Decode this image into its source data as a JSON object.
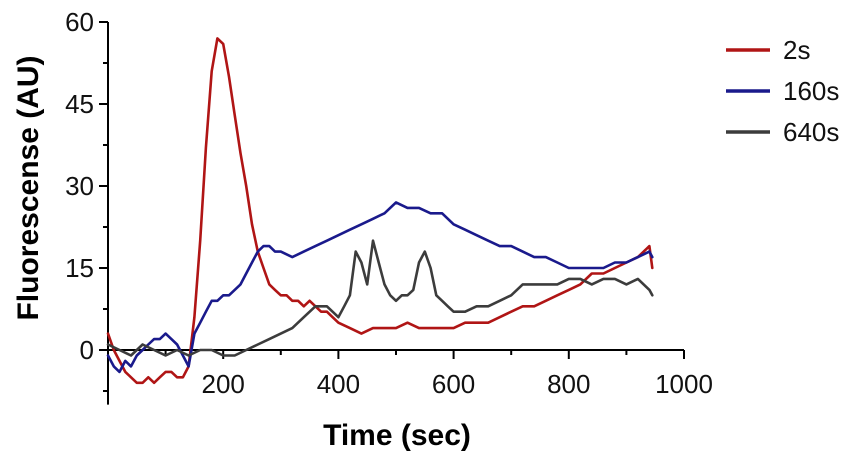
{
  "chart_data": {
    "type": "line",
    "title": "",
    "xlabel": "Time (sec)",
    "ylabel": "Fluorescense (AU)",
    "xlim": [
      0,
      1000
    ],
    "ylim": [
      -10,
      60
    ],
    "xticks": [
      200,
      400,
      600,
      800,
      1000
    ],
    "xtick_labels": [
      "200",
      "400",
      "600",
      "800",
      "1000"
    ],
    "yticks": [
      0,
      15,
      30,
      45,
      60
    ],
    "ytick_labels": [
      "0",
      "15",
      "30",
      "45",
      60
    ],
    "grid": false,
    "legend_position": "top-right",
    "series": [
      {
        "name": "2s",
        "color": "#b01515",
        "x": [
          0,
          10,
          20,
          30,
          40,
          50,
          60,
          70,
          80,
          90,
          100,
          110,
          120,
          130,
          140,
          150,
          160,
          170,
          180,
          190,
          200,
          210,
          220,
          230,
          240,
          250,
          260,
          270,
          280,
          290,
          300,
          310,
          320,
          330,
          340,
          350,
          360,
          370,
          380,
          390,
          400,
          420,
          440,
          460,
          480,
          500,
          520,
          540,
          560,
          580,
          600,
          620,
          640,
          660,
          680,
          700,
          720,
          740,
          760,
          780,
          800,
          820,
          840,
          860,
          880,
          900,
          920,
          930,
          940,
          945
        ],
        "y": [
          3,
          0,
          -2,
          -4,
          -5,
          -6,
          -6,
          -5,
          -6,
          -5,
          -4,
          -4,
          -5,
          -5,
          -3,
          6,
          20,
          37,
          51,
          57,
          56,
          50,
          43,
          36,
          30,
          23,
          18,
          15,
          12,
          11,
          10,
          10,
          9,
          9,
          8,
          9,
          8,
          7,
          7,
          6,
          5,
          4,
          3,
          4,
          4,
          4,
          5,
          4,
          4,
          4,
          4,
          5,
          5,
          5,
          6,
          7,
          8,
          8,
          9,
          10,
          11,
          12,
          14,
          14,
          15,
          16,
          17,
          18,
          19,
          15
        ]
      },
      {
        "name": "160s",
        "color": "#1a1a8c",
        "x": [
          0,
          10,
          20,
          30,
          40,
          50,
          60,
          70,
          80,
          90,
          100,
          110,
          120,
          130,
          140,
          150,
          160,
          170,
          180,
          190,
          200,
          210,
          220,
          230,
          240,
          250,
          260,
          270,
          280,
          290,
          300,
          320,
          340,
          360,
          380,
          400,
          420,
          440,
          460,
          480,
          500,
          520,
          540,
          560,
          580,
          600,
          620,
          640,
          660,
          680,
          700,
          720,
          740,
          760,
          780,
          800,
          820,
          840,
          860,
          880,
          900,
          920,
          940,
          945
        ],
        "y": [
          -1,
          -3,
          -4,
          -2,
          -3,
          -1,
          0,
          1,
          2,
          2,
          3,
          2,
          1,
          -1,
          -3,
          3,
          5,
          7,
          9,
          9,
          10,
          10,
          11,
          12,
          14,
          16,
          18,
          19,
          19,
          18,
          18,
          17,
          18,
          19,
          20,
          21,
          22,
          23,
          24,
          25,
          27,
          26,
          26,
          25,
          25,
          23,
          22,
          21,
          20,
          19,
          19,
          18,
          17,
          17,
          16,
          15,
          15,
          15,
          15,
          16,
          16,
          17,
          18,
          17
        ]
      },
      {
        "name": "640s",
        "color": "#3c3c3c",
        "x": [
          0,
          20,
          40,
          60,
          80,
          100,
          120,
          140,
          160,
          180,
          200,
          220,
          240,
          260,
          280,
          300,
          320,
          340,
          360,
          380,
          400,
          410,
          420,
          430,
          440,
          450,
          460,
          470,
          480,
          490,
          500,
          510,
          520,
          530,
          540,
          550,
          560,
          570,
          580,
          590,
          600,
          620,
          640,
          660,
          680,
          700,
          720,
          740,
          760,
          780,
          800,
          820,
          840,
          860,
          880,
          900,
          920,
          940,
          945
        ],
        "y": [
          1,
          0,
          -1,
          1,
          0,
          -1,
          0,
          -1,
          0,
          0,
          -1,
          -1,
          0,
          1,
          2,
          3,
          4,
          6,
          8,
          8,
          6,
          8,
          10,
          18,
          16,
          12,
          20,
          16,
          12,
          10,
          9,
          10,
          10,
          11,
          16,
          18,
          15,
          10,
          9,
          8,
          7,
          7,
          8,
          8,
          9,
          10,
          12,
          12,
          12,
          12,
          13,
          13,
          12,
          13,
          13,
          12,
          13,
          11,
          10
        ]
      }
    ]
  }
}
